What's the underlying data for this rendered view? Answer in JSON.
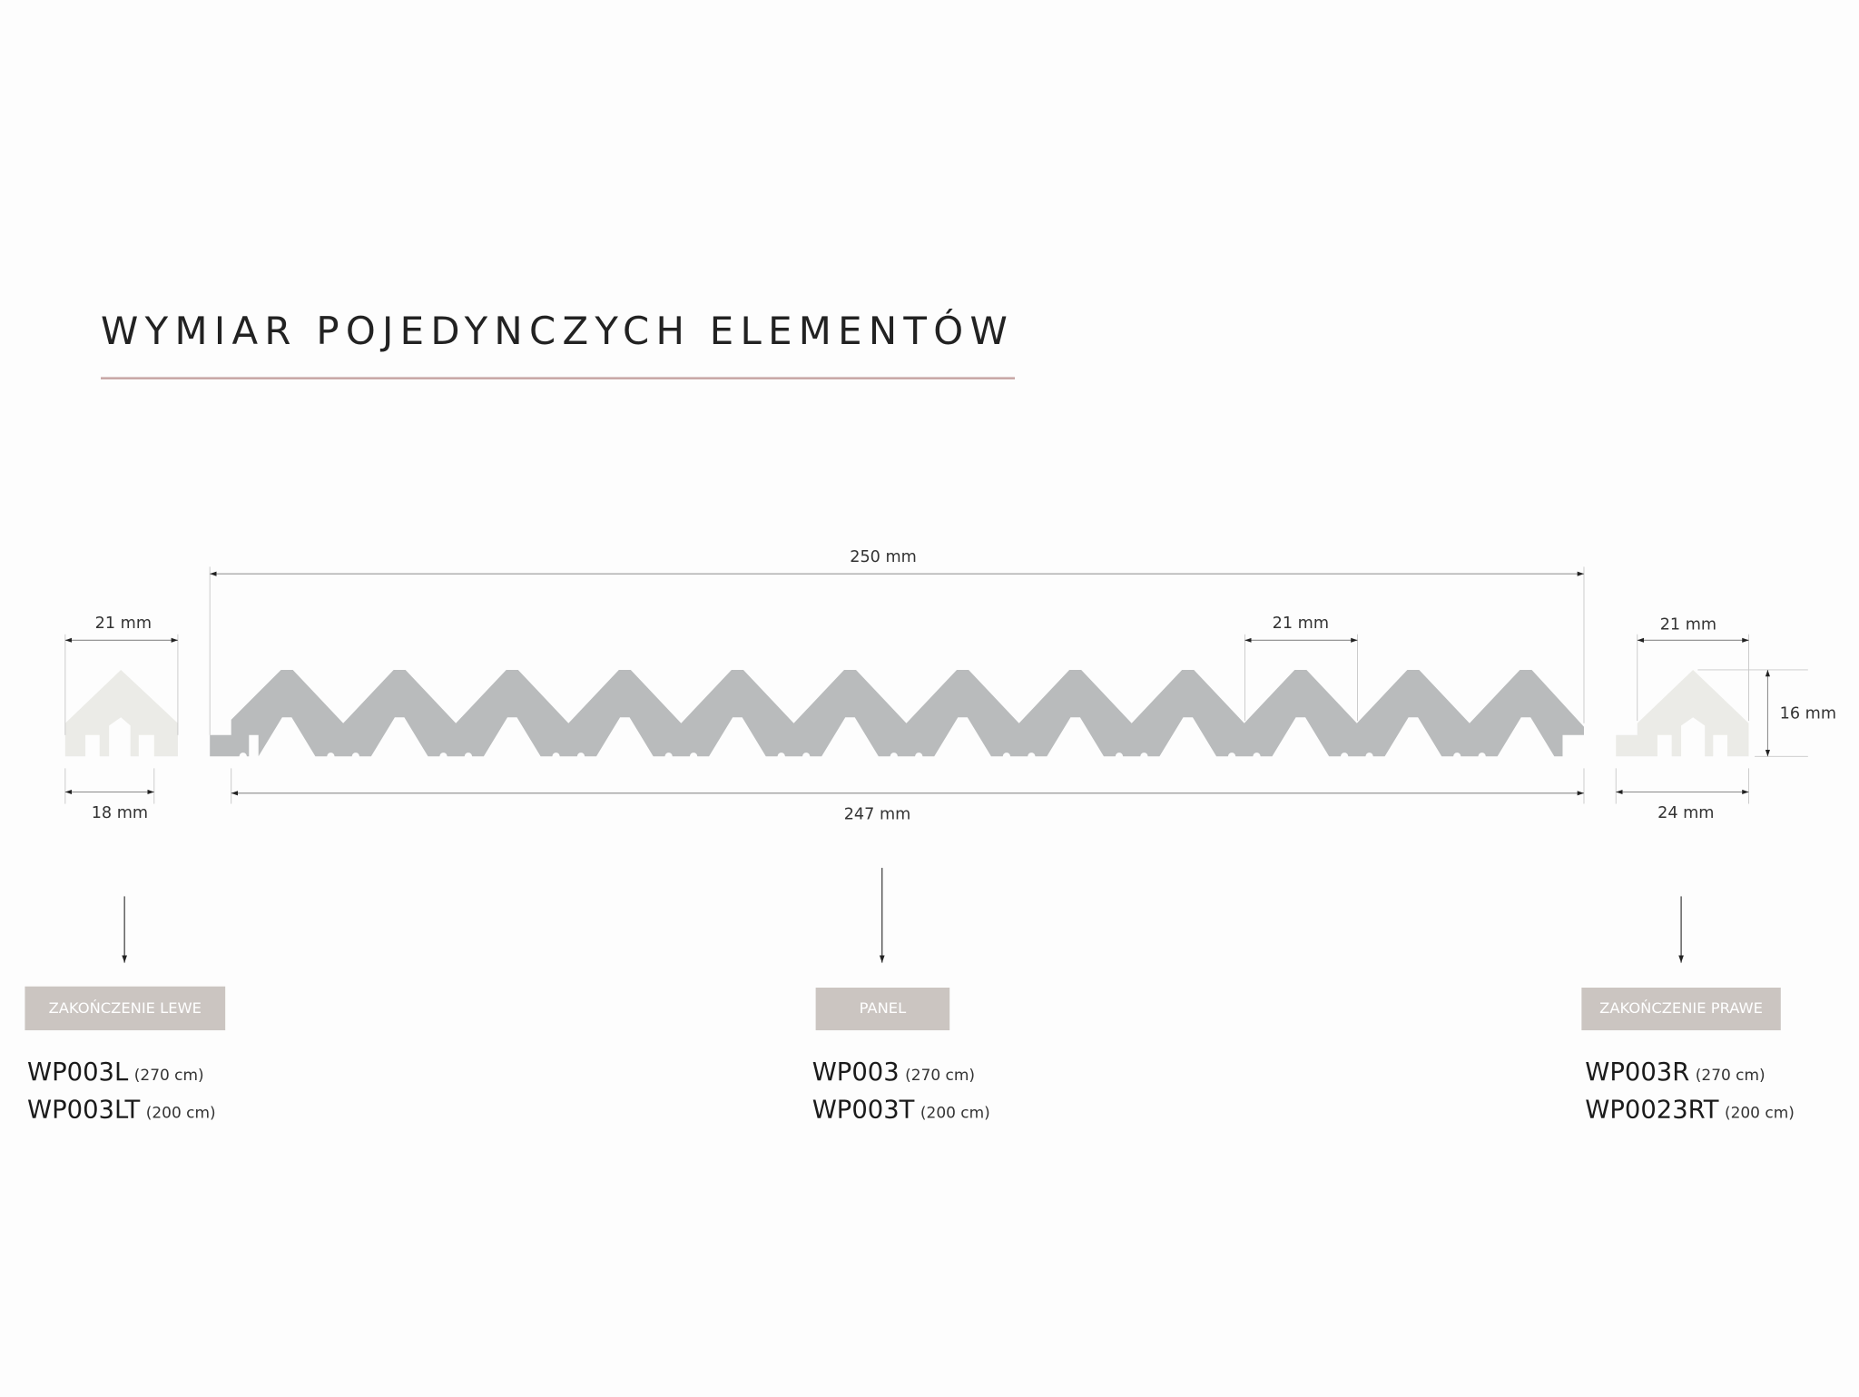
{
  "title": "WYMIAR POJEDYNCZYCH ELEMENTÓW",
  "elements": [
    {
      "dimensions": {
        "width_top": "21 mm",
        "width_bottom": "18 mm"
      },
      "label": "ZAKOŃCZENIE LEWE",
      "codes": [
        {
          "code": "WP003L",
          "length": "(270 cm)"
        },
        {
          "code": "WP003LT",
          "length": "(200 cm)"
        }
      ]
    },
    {
      "dimensions": {
        "total_width": "250 mm",
        "module_width": "21 mm",
        "width_bottom": "247 mm"
      },
      "label": "PANEL",
      "codes": [
        {
          "code": "WP003",
          "length": "(270 cm)"
        },
        {
          "code": "WP003T",
          "length": "(200 cm)"
        }
      ]
    },
    {
      "dimensions": {
        "width_top": "21 mm",
        "height": "16 mm",
        "width_bottom": "24 mm"
      },
      "label": "ZAKOŃCZENIE PRAWE",
      "codes": [
        {
          "code": "WP003R",
          "length": "(270 cm)"
        },
        {
          "code": "WP0023RT",
          "length": "(200 cm)"
        }
      ]
    }
  ]
}
